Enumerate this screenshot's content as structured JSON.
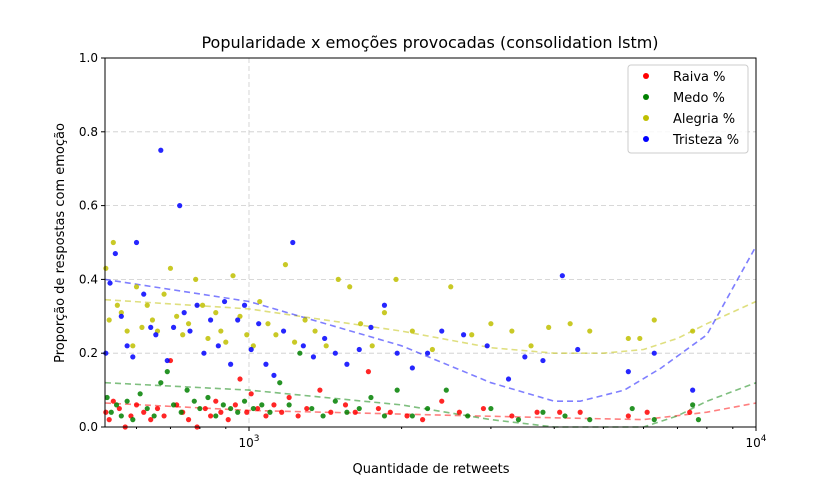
{
  "chart_data": {
    "type": "scatter",
    "title": "Popularidade x emoções provocadas (consolidation lstm)",
    "xlabel": "Quantidade de retweets",
    "ylabel": "Proporção de respostas com emoção",
    "xscale": "log",
    "xlim": [
      520,
      10000
    ],
    "ylim": [
      0,
      1
    ],
    "x_ticks": [
      {
        "value": 1000,
        "base": "10",
        "exp": "3"
      },
      {
        "value": 10000,
        "base": "10",
        "exp": "4"
      }
    ],
    "y_ticks": [
      "0.0",
      "0.2",
      "0.4",
      "0.6",
      "0.8",
      "1.0"
    ],
    "grid": true,
    "legend_position": "top-right",
    "series": [
      {
        "name": "Raiva %",
        "color": "#ff0000",
        "points": [
          [
            522,
            0.04
          ],
          [
            530,
            0.02
          ],
          [
            540,
            0.07
          ],
          [
            555,
            0.05
          ],
          [
            570,
            0.0
          ],
          [
            585,
            0.03
          ],
          [
            600,
            0.06
          ],
          [
            620,
            0.04
          ],
          [
            640,
            0.02
          ],
          [
            660,
            0.05
          ],
          [
            680,
            0.03
          ],
          [
            700,
            0.18
          ],
          [
            720,
            0.06
          ],
          [
            740,
            0.04
          ],
          [
            760,
            0.02
          ],
          [
            790,
            0.0
          ],
          [
            820,
            0.05
          ],
          [
            840,
            0.03
          ],
          [
            860,
            0.07
          ],
          [
            880,
            0.04
          ],
          [
            910,
            0.02
          ],
          [
            940,
            0.06
          ],
          [
            960,
            0.13
          ],
          [
            990,
            0.04
          ],
          [
            1010,
            0.09
          ],
          [
            1040,
            0.05
          ],
          [
            1080,
            0.03
          ],
          [
            1120,
            0.06
          ],
          [
            1160,
            0.04
          ],
          [
            1200,
            0.08
          ],
          [
            1250,
            0.03
          ],
          [
            1300,
            0.05
          ],
          [
            1380,
            0.1
          ],
          [
            1450,
            0.04
          ],
          [
            1550,
            0.06
          ],
          [
            1620,
            0.04
          ],
          [
            1720,
            0.15
          ],
          [
            1800,
            0.05
          ],
          [
            1900,
            0.04
          ],
          [
            2050,
            0.03
          ],
          [
            2200,
            0.02
          ],
          [
            2400,
            0.07
          ],
          [
            2600,
            0.04
          ],
          [
            2900,
            0.05
          ],
          [
            3300,
            0.03
          ],
          [
            3700,
            0.04
          ],
          [
            4100,
            0.04
          ],
          [
            4500,
            0.04
          ],
          [
            5600,
            0.03
          ],
          [
            6100,
            0.04
          ],
          [
            7400,
            0.04
          ]
        ]
      },
      {
        "name": "Medo %",
        "color": "#008000",
        "points": [
          [
            525,
            0.08
          ],
          [
            535,
            0.04
          ],
          [
            548,
            0.06
          ],
          [
            560,
            0.03
          ],
          [
            575,
            0.07
          ],
          [
            590,
            0.02
          ],
          [
            610,
            0.09
          ],
          [
            630,
            0.05
          ],
          [
            650,
            0.03
          ],
          [
            670,
            0.12
          ],
          [
            690,
            0.15
          ],
          [
            710,
            0.06
          ],
          [
            735,
            0.04
          ],
          [
            755,
            0.1
          ],
          [
            780,
            0.07
          ],
          [
            800,
            0.05
          ],
          [
            830,
            0.08
          ],
          [
            860,
            0.03
          ],
          [
            890,
            0.06
          ],
          [
            920,
            0.05
          ],
          [
            950,
            0.04
          ],
          [
            980,
            0.07
          ],
          [
            1020,
            0.05
          ],
          [
            1060,
            0.06
          ],
          [
            1100,
            0.04
          ],
          [
            1150,
            0.12
          ],
          [
            1200,
            0.06
          ],
          [
            1260,
            0.2
          ],
          [
            1330,
            0.05
          ],
          [
            1400,
            0.03
          ],
          [
            1480,
            0.07
          ],
          [
            1560,
            0.04
          ],
          [
            1650,
            0.05
          ],
          [
            1740,
            0.08
          ],
          [
            1850,
            0.03
          ],
          [
            1960,
            0.1
          ],
          [
            2100,
            0.03
          ],
          [
            2250,
            0.05
          ],
          [
            2450,
            0.1
          ],
          [
            2700,
            0.03
          ],
          [
            3000,
            0.05
          ],
          [
            3400,
            0.02
          ],
          [
            3800,
            0.04
          ],
          [
            4200,
            0.03
          ],
          [
            4700,
            0.02
          ],
          [
            5700,
            0.05
          ],
          [
            6300,
            0.02
          ],
          [
            7500,
            0.06
          ],
          [
            7700,
            0.02
          ]
        ]
      },
      {
        "name": "Alegria %",
        "color": "#bfbf00",
        "points": [
          [
            522,
            0.43
          ],
          [
            530,
            0.29
          ],
          [
            540,
            0.5
          ],
          [
            550,
            0.33
          ],
          [
            560,
            0.31
          ],
          [
            575,
            0.26
          ],
          [
            590,
            0.22
          ],
          [
            600,
            0.38
          ],
          [
            615,
            0.27
          ],
          [
            630,
            0.33
          ],
          [
            645,
            0.29
          ],
          [
            660,
            0.26
          ],
          [
            680,
            0.36
          ],
          [
            700,
            0.43
          ],
          [
            720,
            0.3
          ],
          [
            740,
            0.25
          ],
          [
            760,
            0.28
          ],
          [
            785,
            0.4
          ],
          [
            810,
            0.33
          ],
          [
            830,
            0.24
          ],
          [
            860,
            0.31
          ],
          [
            880,
            0.26
          ],
          [
            900,
            0.23
          ],
          [
            930,
            0.41
          ],
          [
            960,
            0.3
          ],
          [
            990,
            0.25
          ],
          [
            1020,
            0.22
          ],
          [
            1050,
            0.34
          ],
          [
            1090,
            0.28
          ],
          [
            1130,
            0.25
          ],
          [
            1180,
            0.44
          ],
          [
            1230,
            0.23
          ],
          [
            1290,
            0.29
          ],
          [
            1350,
            0.26
          ],
          [
            1420,
            0.22
          ],
          [
            1500,
            0.4
          ],
          [
            1580,
            0.38
          ],
          [
            1660,
            0.28
          ],
          [
            1750,
            0.22
          ],
          [
            1850,
            0.31
          ],
          [
            1950,
            0.4
          ],
          [
            2100,
            0.26
          ],
          [
            2300,
            0.21
          ],
          [
            2500,
            0.38
          ],
          [
            2750,
            0.25
          ],
          [
            3000,
            0.28
          ],
          [
            3300,
            0.26
          ],
          [
            3600,
            0.22
          ],
          [
            3900,
            0.27
          ],
          [
            4300,
            0.28
          ],
          [
            4700,
            0.26
          ],
          [
            5600,
            0.24
          ],
          [
            5900,
            0.24
          ],
          [
            6300,
            0.29
          ],
          [
            7500,
            0.26
          ]
        ]
      },
      {
        "name": "Tristeza %",
        "color": "#0000ff",
        "points": [
          [
            522,
            0.2
          ],
          [
            532,
            0.39
          ],
          [
            545,
            0.47
          ],
          [
            560,
            0.3
          ],
          [
            575,
            0.22
          ],
          [
            590,
            0.19
          ],
          [
            600,
            0.5
          ],
          [
            620,
            0.36
          ],
          [
            640,
            0.27
          ],
          [
            655,
            0.25
          ],
          [
            670,
            0.75
          ],
          [
            690,
            0.18
          ],
          [
            710,
            0.27
          ],
          [
            730,
            0.6
          ],
          [
            745,
            0.31
          ],
          [
            765,
            0.26
          ],
          [
            790,
            0.33
          ],
          [
            815,
            0.2
          ],
          [
            840,
            0.29
          ],
          [
            870,
            0.22
          ],
          [
            895,
            0.34
          ],
          [
            920,
            0.17
          ],
          [
            950,
            0.29
          ],
          [
            980,
            0.33
          ],
          [
            1010,
            0.21
          ],
          [
            1045,
            0.28
          ],
          [
            1080,
            0.17
          ],
          [
            1120,
            0.14
          ],
          [
            1170,
            0.26
          ],
          [
            1220,
            0.5
          ],
          [
            1280,
            0.22
          ],
          [
            1340,
            0.19
          ],
          [
            1410,
            0.24
          ],
          [
            1480,
            0.2
          ],
          [
            1560,
            0.17
          ],
          [
            1650,
            0.21
          ],
          [
            1740,
            0.27
          ],
          [
            1850,
            0.33
          ],
          [
            1960,
            0.2
          ],
          [
            2100,
            0.16
          ],
          [
            2250,
            0.2
          ],
          [
            2400,
            0.26
          ],
          [
            2650,
            0.25
          ],
          [
            2950,
            0.22
          ],
          [
            3250,
            0.13
          ],
          [
            3500,
            0.19
          ],
          [
            3800,
            0.18
          ],
          [
            4150,
            0.41
          ],
          [
            4450,
            0.21
          ],
          [
            5600,
            0.15
          ],
          [
            6300,
            0.2
          ],
          [
            7500,
            0.1
          ]
        ]
      }
    ],
    "trend_lines": [
      {
        "name": "Raiva %",
        "color": "#ff0000",
        "points": [
          [
            520,
            0.065
          ],
          [
            1000,
            0.045
          ],
          [
            2000,
            0.035
          ],
          [
            4000,
            0.025
          ],
          [
            6000,
            0.02
          ],
          [
            8000,
            0.04
          ],
          [
            10000,
            0.065
          ]
        ]
      },
      {
        "name": "Medo %",
        "color": "#008000",
        "points": [
          [
            520,
            0.12
          ],
          [
            1000,
            0.1
          ],
          [
            2000,
            0.06
          ],
          [
            3000,
            0.02
          ],
          [
            4000,
            0.0
          ],
          [
            5000,
            0.0
          ],
          [
            6000,
            0.0
          ],
          [
            7000,
            0.03
          ],
          [
            8000,
            0.07
          ],
          [
            10000,
            0.12
          ]
        ]
      },
      {
        "name": "Alegria %",
        "color": "#bfbf00",
        "points": [
          [
            520,
            0.345
          ],
          [
            1000,
            0.32
          ],
          [
            2000,
            0.26
          ],
          [
            3000,
            0.215
          ],
          [
            4000,
            0.2
          ],
          [
            5000,
            0.2
          ],
          [
            6000,
            0.21
          ],
          [
            7000,
            0.24
          ],
          [
            8000,
            0.28
          ],
          [
            10000,
            0.34
          ]
        ]
      },
      {
        "name": "Tristeza %",
        "color": "#0000ff",
        "points": [
          [
            520,
            0.4
          ],
          [
            1000,
            0.34
          ],
          [
            2000,
            0.22
          ],
          [
            3000,
            0.12
          ],
          [
            4000,
            0.07
          ],
          [
            4500,
            0.07
          ],
          [
            5500,
            0.1
          ],
          [
            6500,
            0.16
          ],
          [
            8000,
            0.25
          ],
          [
            10000,
            0.49
          ]
        ]
      }
    ]
  }
}
